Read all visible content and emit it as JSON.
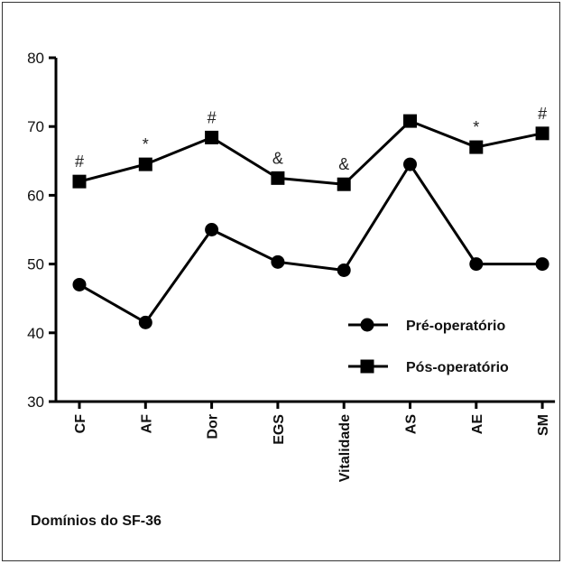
{
  "chart_data": {
    "type": "line",
    "categories": [
      "CF",
      "AF",
      "Dor",
      "EGS",
      "Vitalidade",
      "AS",
      "AE",
      "SM"
    ],
    "series": [
      {
        "name": "Pré-operatório",
        "marker": "circle",
        "values": [
          47,
          41.5,
          55,
          50.3,
          49.1,
          64.5,
          50,
          50
        ]
      },
      {
        "name": "Pós-operatório",
        "marker": "square",
        "values": [
          62,
          64.5,
          68.4,
          62.5,
          61.6,
          70.8,
          67,
          69
        ]
      }
    ],
    "annotations": [
      "#",
      "*",
      "#",
      "&",
      "&",
      "",
      "*",
      "#"
    ],
    "xlabel": "Domínios do SF-36",
    "ylabel": "",
    "ylim": [
      30,
      80
    ],
    "yticks": [
      30,
      40,
      50,
      60,
      70,
      80
    ],
    "legend_position": "right",
    "grid": false,
    "colors": {
      "line": "#000000",
      "text": "#111111",
      "frame": "#333333"
    }
  }
}
